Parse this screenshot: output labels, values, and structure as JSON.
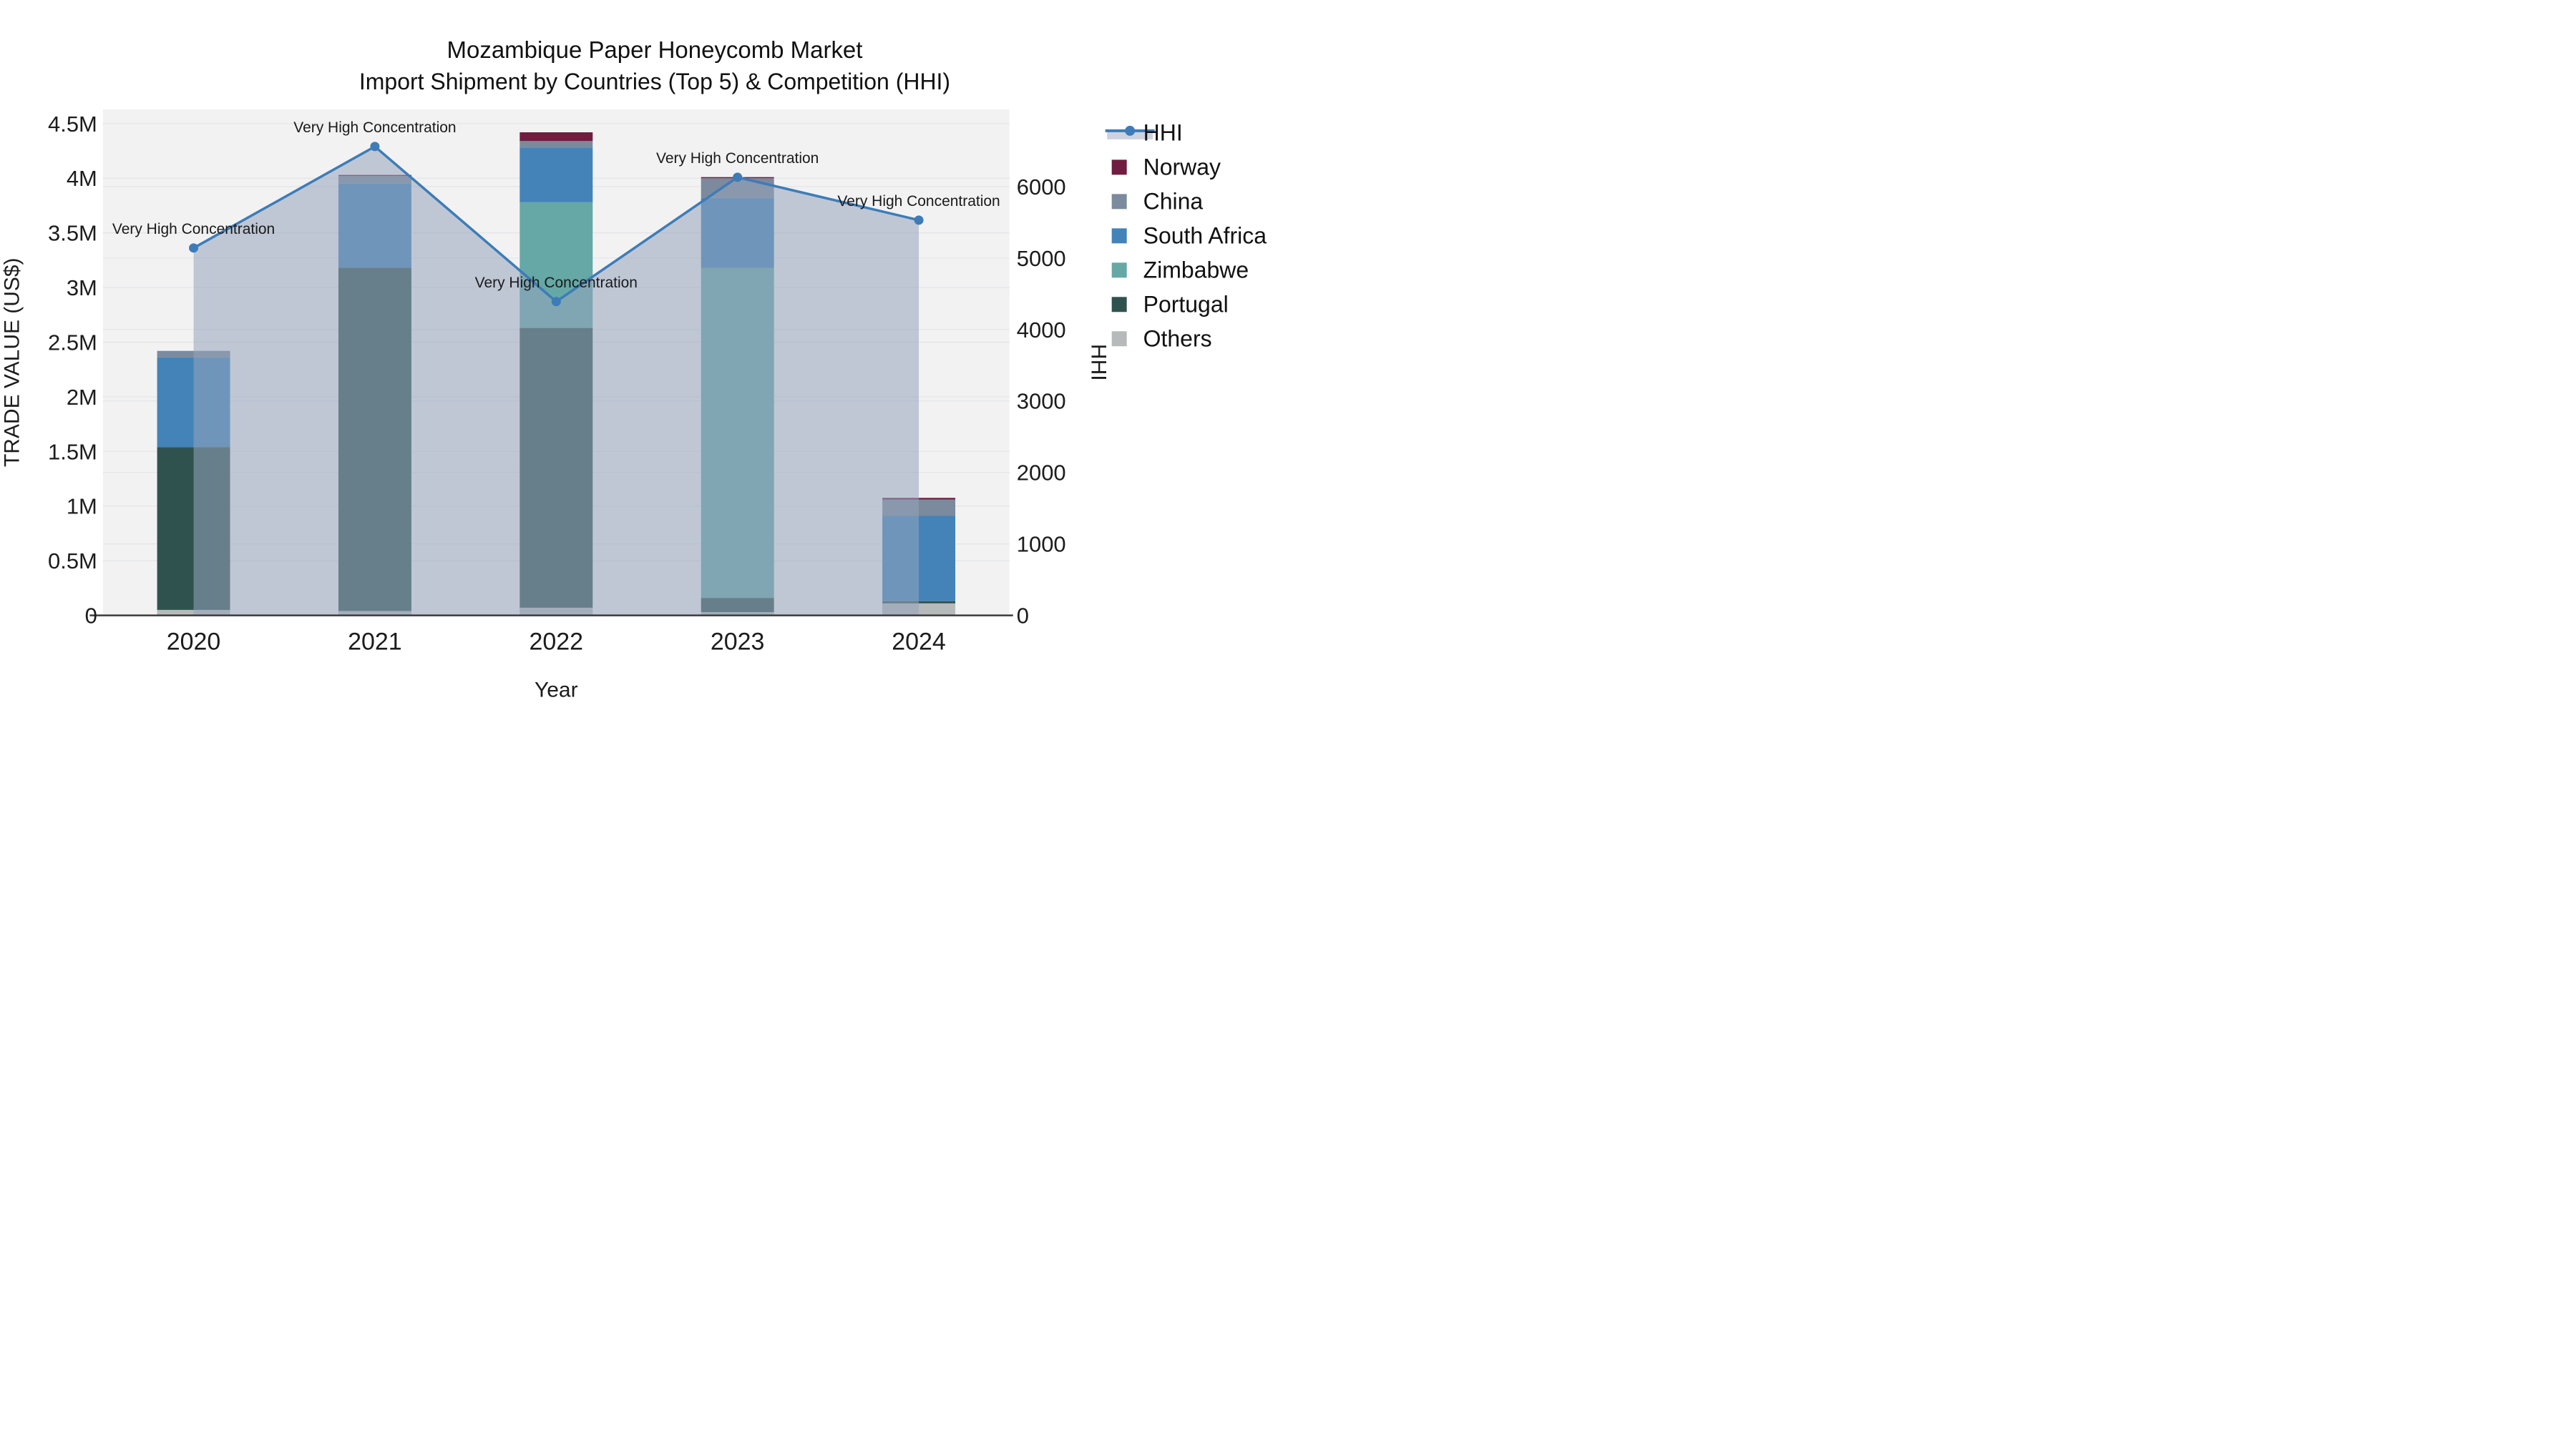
{
  "figure": {
    "title_line1": "Mozambique Paper Honeycomb Market",
    "title_line2": "Import Shipment by Countries (Top 5) & Competition (HHI)"
  },
  "colors": {
    "background": "#ffffff",
    "plot_background": "#f2f2f3",
    "gridline": "#e3e4e7",
    "axis_line": "#3b3b3b",
    "text": "#111111",
    "hhi_line": "#3d7cb8",
    "hhi_area_fill": "rgba(150,164,188,0.55)",
    "norway": "#6f1d40",
    "china": "#7b8a9c",
    "south_africa": "#4383b8",
    "zimbabwe": "#65a8a6",
    "portugal": "#2f524e",
    "others": "#b7baba"
  },
  "chart_data": {
    "type": "bar+line",
    "title": "Mozambique Paper Honeycomb Market — Import Shipment by Countries (Top 5) & Competition (HHI)",
    "categories": [
      "2020",
      "2021",
      "2022",
      "2023",
      "2024"
    ],
    "xlabel": "Year",
    "ylabel_left": "TRADE VALUE (US$)",
    "ylabel_right": "HHI",
    "stack_note": "stacked bars, bottom-to-top order as listed; values in millions of US$",
    "series": [
      {
        "name": "Others",
        "color": "#b7baba",
        "values": [
          0.05,
          0.04,
          0.07,
          0.03,
          0.11
        ]
      },
      {
        "name": "Portugal",
        "color": "#2f524e",
        "values": [
          1.49,
          3.14,
          2.56,
          0.13,
          0.02
        ]
      },
      {
        "name": "Zimbabwe",
        "color": "#65a8a6",
        "values": [
          0.0,
          0.0,
          1.15,
          3.02,
          0.0
        ]
      },
      {
        "name": "South Africa",
        "color": "#4383b8",
        "values": [
          0.82,
          0.77,
          0.5,
          0.64,
          0.78
        ]
      },
      {
        "name": "China",
        "color": "#7b8a9c",
        "values": [
          0.06,
          0.07,
          0.06,
          0.18,
          0.15
        ]
      },
      {
        "name": "Norway",
        "color": "#6f1d40",
        "values": [
          0.0,
          0.01,
          0.08,
          0.01,
          0.015
        ]
      }
    ],
    "bar_totals_millions": [
      2.42,
      4.03,
      4.42,
      4.01,
      1.08
    ],
    "line_series": {
      "name": "HHI",
      "color": "#3d7cb8",
      "values": [
        5140,
        6560,
        4390,
        6130,
        5530
      ],
      "area_fill": "rgba(150,164,188,0.55)"
    },
    "annotations": [
      {
        "category": "2020",
        "text": "Very High Concentration"
      },
      {
        "category": "2021",
        "text": "Very High Concentration"
      },
      {
        "category": "2022",
        "text": "Very High Concentration"
      },
      {
        "category": "2023",
        "text": "Very High Concentration"
      },
      {
        "category": "2024",
        "text": "Very High Concentration"
      }
    ],
    "axis_left": {
      "title": "TRADE VALUE (US$)",
      "tick_labels": [
        "0",
        "0.5M",
        "1M",
        "1.5M",
        "2M",
        "2.5M",
        "3M",
        "3.5M",
        "4M",
        "4.5M"
      ],
      "tick_values": [
        0,
        0.5,
        1,
        1.5,
        2,
        2.5,
        3,
        3.5,
        4,
        4.5
      ],
      "range": [
        0,
        4.63
      ],
      "unit": "millions US$"
    },
    "axis_right": {
      "title": "HHI",
      "tick_labels": [
        "0",
        "1000",
        "2000",
        "3000",
        "4000",
        "5000",
        "6000"
      ],
      "tick_values": [
        0,
        1000,
        2000,
        3000,
        4000,
        5000,
        6000
      ],
      "range": [
        0,
        7080
      ]
    },
    "grid": "horizontal gridlines for both axes",
    "legend_position": "right"
  },
  "legend": {
    "items": [
      {
        "label": "HHI",
        "type": "line-marker",
        "color": "#3d7cb8",
        "band_color": "#ccd3de"
      },
      {
        "label": "Norway",
        "type": "swatch",
        "color": "#6f1d40"
      },
      {
        "label": "China",
        "type": "swatch",
        "color": "#7b8a9c"
      },
      {
        "label": "South Africa",
        "type": "swatch",
        "color": "#4383b8"
      },
      {
        "label": "Zimbabwe",
        "type": "swatch",
        "color": "#65a8a6"
      },
      {
        "label": "Portugal",
        "type": "swatch",
        "color": "#2f524e"
      },
      {
        "label": "Others",
        "type": "swatch",
        "color": "#b7baba"
      }
    ]
  }
}
